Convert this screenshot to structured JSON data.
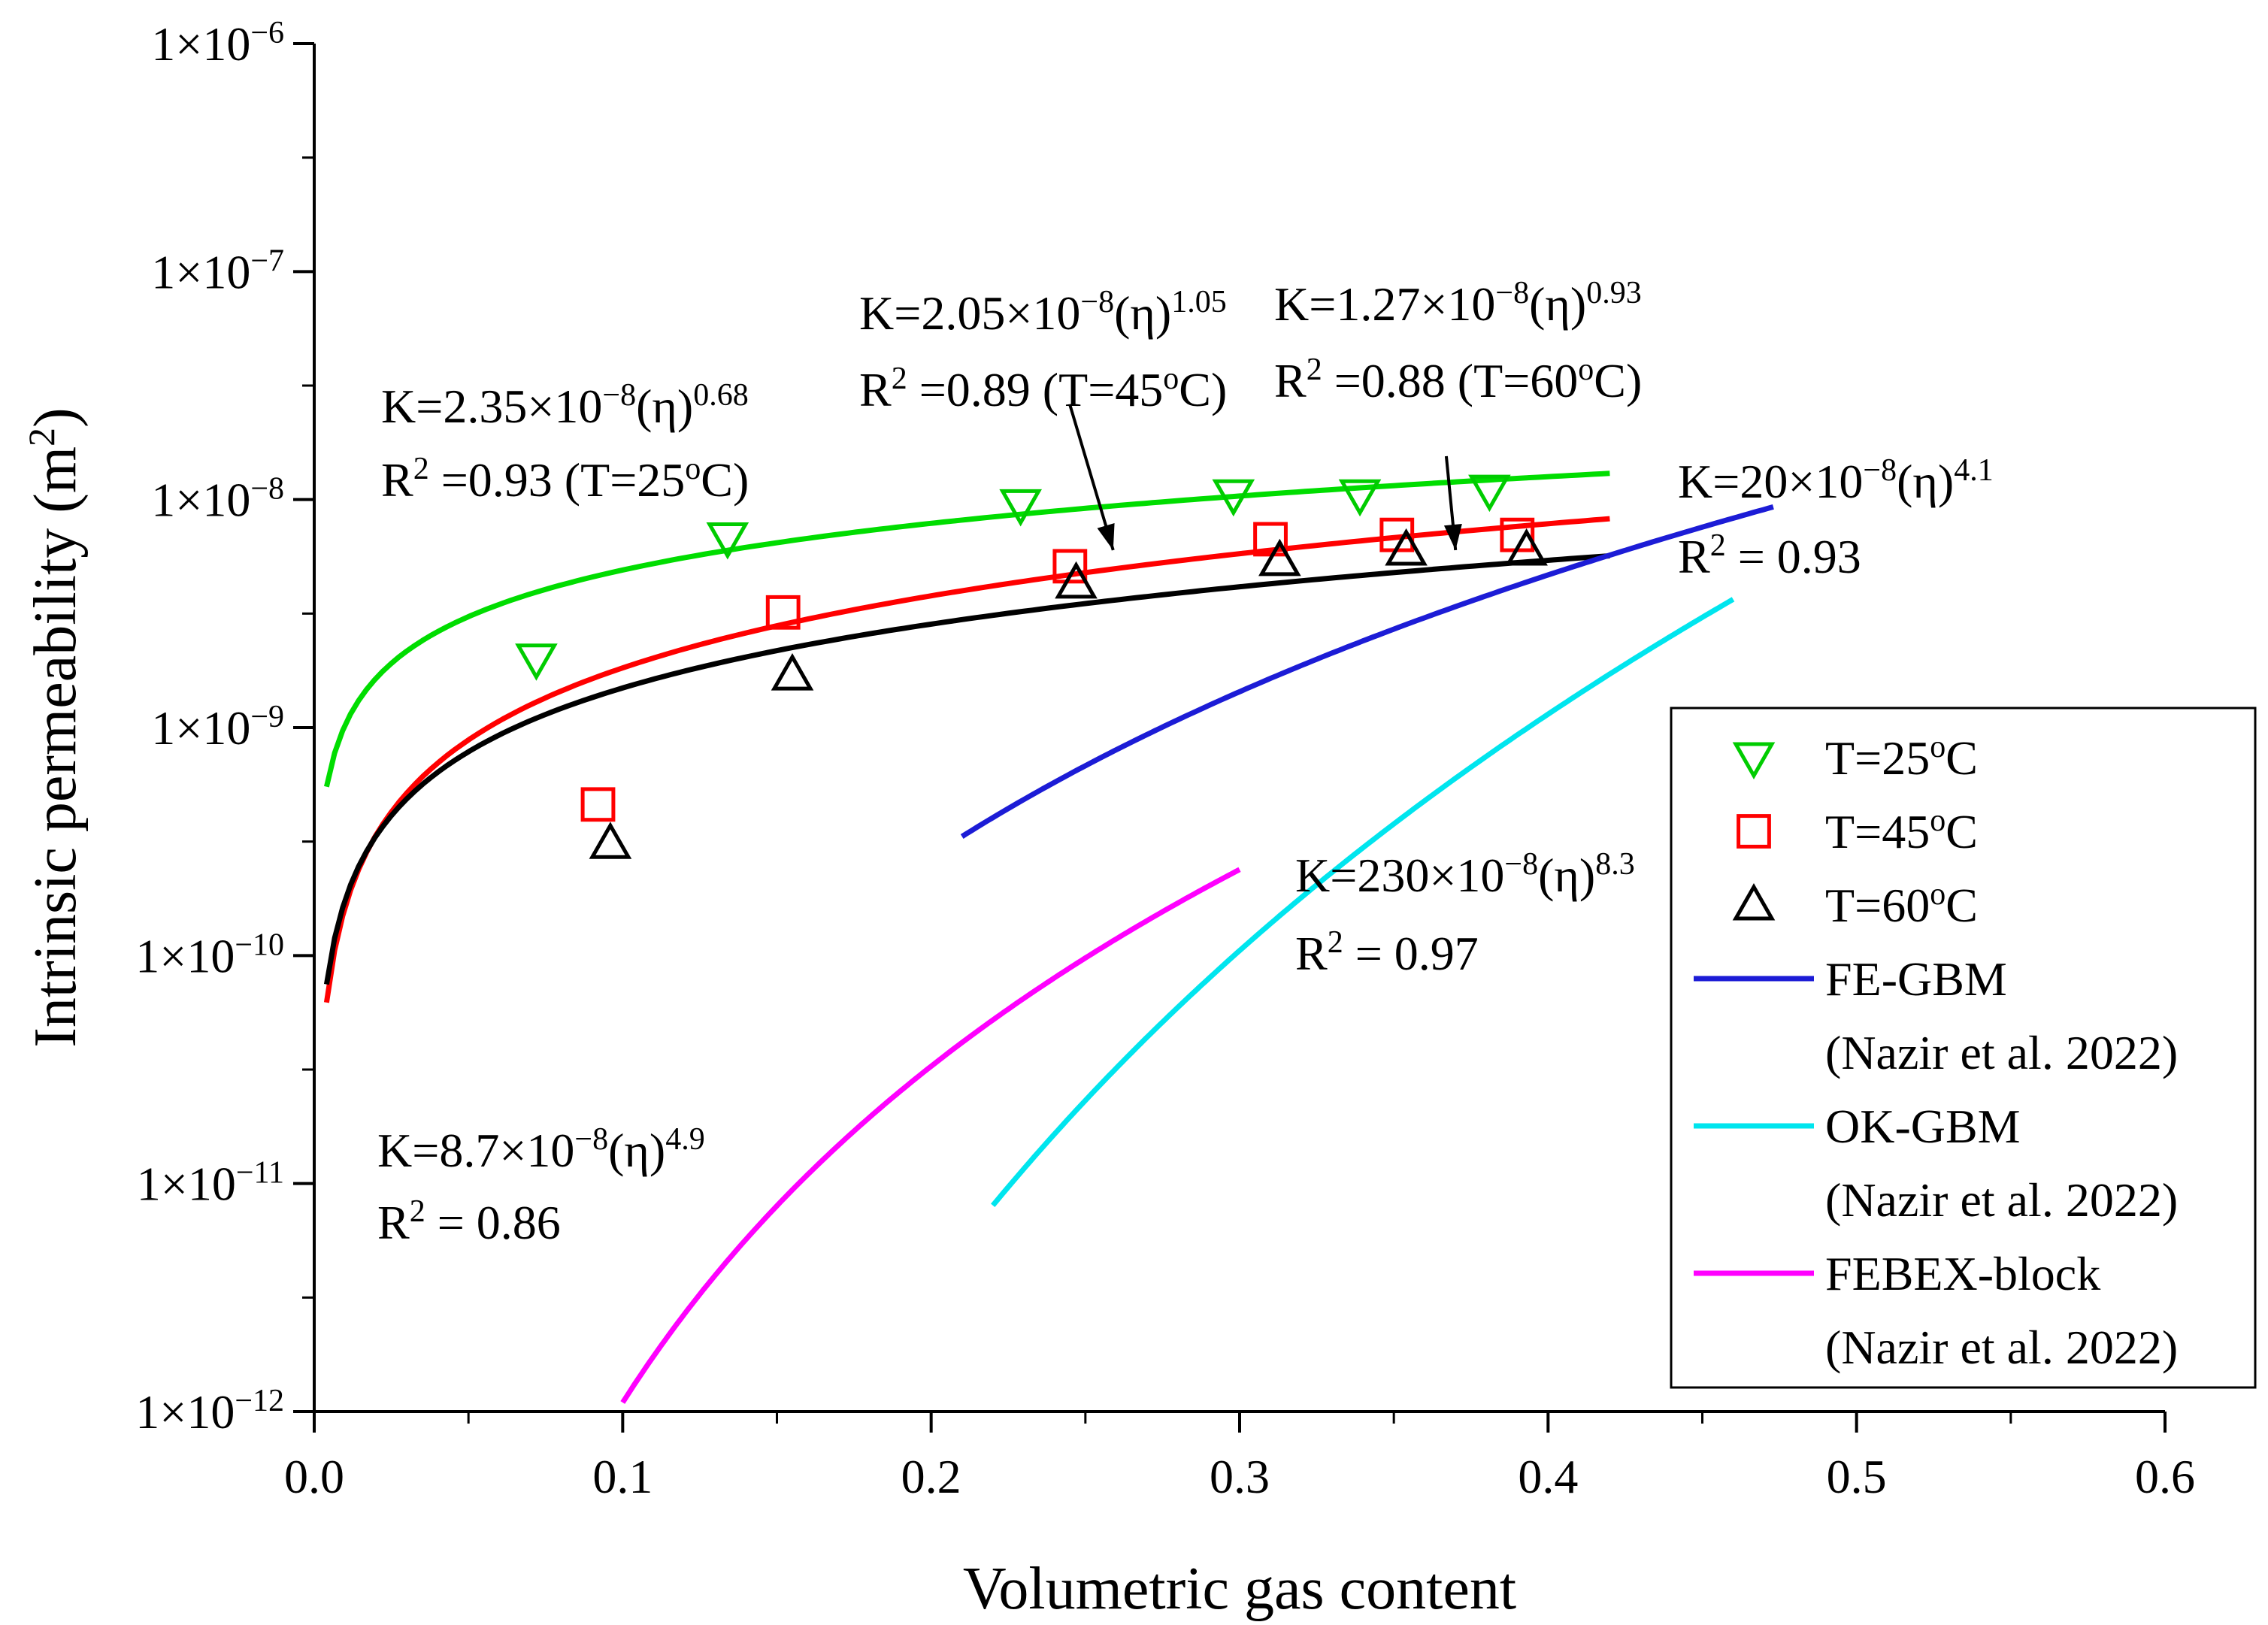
{
  "chart_data": {
    "type": "scatter",
    "xlabel": "Volumetric gas content",
    "ylabel": "Intrinsic permeability (m",
    "ylabel_sup": "2",
    "ylabel_close": ")",
    "xlim": [
      0,
      0.6
    ],
    "ylim": [
      1e-12,
      1e-06
    ],
    "yscale": "log",
    "x_ticks": [
      {
        "value": 0.0,
        "label": "0.0"
      },
      {
        "value": 0.1,
        "label": "0.1"
      },
      {
        "value": 0.2,
        "label": "0.2"
      },
      {
        "value": 0.3,
        "label": "0.3"
      },
      {
        "value": 0.4,
        "label": "0.4"
      },
      {
        "value": 0.5,
        "label": "0.5"
      },
      {
        "value": 0.6,
        "label": "0.6"
      }
    ],
    "y_ticks": [
      {
        "exp": -6,
        "label": "1×10",
        "sup": "−6"
      },
      {
        "exp": -7,
        "label": "1×10",
        "sup": "−7"
      },
      {
        "exp": -8,
        "label": "1×10",
        "sup": "−8"
      },
      {
        "exp": -9,
        "label": "1×10",
        "sup": "−9"
      },
      {
        "exp": -10,
        "label": "1×10",
        "sup": "−10"
      },
      {
        "exp": -11,
        "label": "1×10",
        "sup": "−11"
      },
      {
        "exp": -12,
        "label": "1×10",
        "sup": "−12"
      }
    ],
    "scatter_series": [
      {
        "name": "T=25",
        "sup": "o",
        "tail": "C",
        "marker": "triangle-down",
        "color": "#00cc00",
        "points": [
          [
            0.072,
            2e-09
          ],
          [
            0.134,
            6.8e-09
          ],
          [
            0.229,
            9.5e-09
          ],
          [
            0.298,
            1.05e-08
          ],
          [
            0.339,
            1.05e-08
          ],
          [
            0.381,
            1.1e-08
          ]
        ]
      },
      {
        "name": "T=45",
        "sup": "o",
        "tail": "C",
        "marker": "square",
        "color": "#ff0000",
        "points": [
          [
            0.092,
            4.6e-10
          ],
          [
            0.152,
            3.2e-09
          ],
          [
            0.245,
            5.1e-09
          ],
          [
            0.31,
            6.7e-09
          ],
          [
            0.351,
            7e-09
          ],
          [
            0.39,
            7e-09
          ]
        ]
      },
      {
        "name": "T=60",
        "sup": "o",
        "tail": "C",
        "marker": "triangle-up",
        "color": "#000000",
        "points": [
          [
            0.096,
            3.1e-10
          ],
          [
            0.155,
            1.7e-09
          ],
          [
            0.247,
            4.3e-09
          ],
          [
            0.313,
            5.4e-09
          ],
          [
            0.354,
            6e-09
          ],
          [
            0.393,
            6e-09
          ]
        ]
      }
    ],
    "line_series": [
      {
        "name": "fit-25",
        "color": "#00dd00",
        "coef": 2.35e-08,
        "exp": 0.68,
        "x_range": [
          0.004,
          0.42
        ],
        "legend": false
      },
      {
        "name": "fit-45",
        "color": "#ff0000",
        "coef": 2.05e-08,
        "exp": 1.05,
        "x_range": [
          0.004,
          0.42
        ],
        "legend": false
      },
      {
        "name": "fit-60",
        "color": "#000000",
        "coef": 1.27e-08,
        "exp": 0.93,
        "x_range": [
          0.004,
          0.42
        ],
        "legend": false
      },
      {
        "name": "FE-GBM",
        "color": "#1c1cd6",
        "coef": 2e-07,
        "exp": 4.1,
        "x_range": [
          0.21,
          0.473
        ],
        "legend": true,
        "legend_sub": "(Nazir et al. 2022)"
      },
      {
        "name": "OK-GBM",
        "color": "#00e5ee",
        "coef": 2.3e-06,
        "exp": 8.3,
        "x_range": [
          0.22,
          0.46
        ],
        "legend": true,
        "legend_sub": "(Nazir et al. 2022)"
      },
      {
        "name": "FEBEX-block",
        "color": "#ff00ff",
        "coef": 8.7e-08,
        "exp": 4.9,
        "x_range": [
          0.1,
          0.3
        ],
        "legend": true,
        "legend_sub": "(Nazir et al. 2022)"
      }
    ],
    "annotations": [
      {
        "id": "a25",
        "line1": [
          {
            "t": "K=2.35×10"
          },
          {
            "t": "−8",
            "sup": true
          },
          {
            "t": "(η)"
          },
          {
            "t": "0.68",
            "sup": true
          }
        ],
        "line2": [
          {
            "t": "R"
          },
          {
            "t": "2",
            "sup": true
          },
          {
            "t": " =0.93 (T=25"
          },
          {
            "t": "o",
            "sup": true
          },
          {
            "t": "C)"
          }
        ]
      },
      {
        "id": "a45",
        "line1": [
          {
            "t": "K=2.05×10"
          },
          {
            "t": "−8",
            "sup": true
          },
          {
            "t": "(η)"
          },
          {
            "t": "1.05",
            "sup": true
          }
        ],
        "line2": [
          {
            "t": "R"
          },
          {
            "t": "2",
            "sup": true
          },
          {
            "t": " =0.89 (T=45"
          },
          {
            "t": "o",
            "sup": true
          },
          {
            "t": "C)"
          }
        ]
      },
      {
        "id": "a60",
        "line1": [
          {
            "t": "K=1.27×10"
          },
          {
            "t": "−8",
            "sup": true
          },
          {
            "t": "(η)"
          },
          {
            "t": "0.93",
            "sup": true
          }
        ],
        "line2": [
          {
            "t": "R"
          },
          {
            "t": "2",
            "sup": true
          },
          {
            "t": " =0.88 (T=60"
          },
          {
            "t": "o",
            "sup": true
          },
          {
            "t": "C)"
          }
        ]
      },
      {
        "id": "afe",
        "line1": [
          {
            "t": "K=20×10"
          },
          {
            "t": "−8",
            "sup": true
          },
          {
            "t": "(η)"
          },
          {
            "t": "4.1",
            "sup": true
          }
        ],
        "line2": [
          {
            "t": "R"
          },
          {
            "t": "2",
            "sup": true
          },
          {
            "t": " = 0.93"
          }
        ]
      },
      {
        "id": "aok",
        "line1": [
          {
            "t": "K=230×10"
          },
          {
            "t": "−8",
            "sup": true
          },
          {
            "t": "(η)"
          },
          {
            "t": "8.3",
            "sup": true
          }
        ],
        "line2": [
          {
            "t": "R"
          },
          {
            "t": "2",
            "sup": true
          },
          {
            "t": " = 0.97"
          }
        ]
      },
      {
        "id": "afebex",
        "line1": [
          {
            "t": "K=8.7×10"
          },
          {
            "t": "−8",
            "sup": true
          },
          {
            "t": "(η)"
          },
          {
            "t": "4.9",
            "sup": true
          }
        ],
        "line2": [
          {
            "t": "R"
          },
          {
            "t": "2",
            "sup": true
          },
          {
            "t": " = 0.86"
          }
        ]
      }
    ],
    "arrows": [
      {
        "name": "arrow-45",
        "from": [
          0.245,
          2.6e-08
        ],
        "to": [
          0.259,
          6e-09
        ]
      },
      {
        "name": "arrow-60",
        "from": [
          0.367,
          1.55e-08
        ],
        "to": [
          0.37,
          6e-09
        ]
      }
    ],
    "legend_position": "right"
  }
}
